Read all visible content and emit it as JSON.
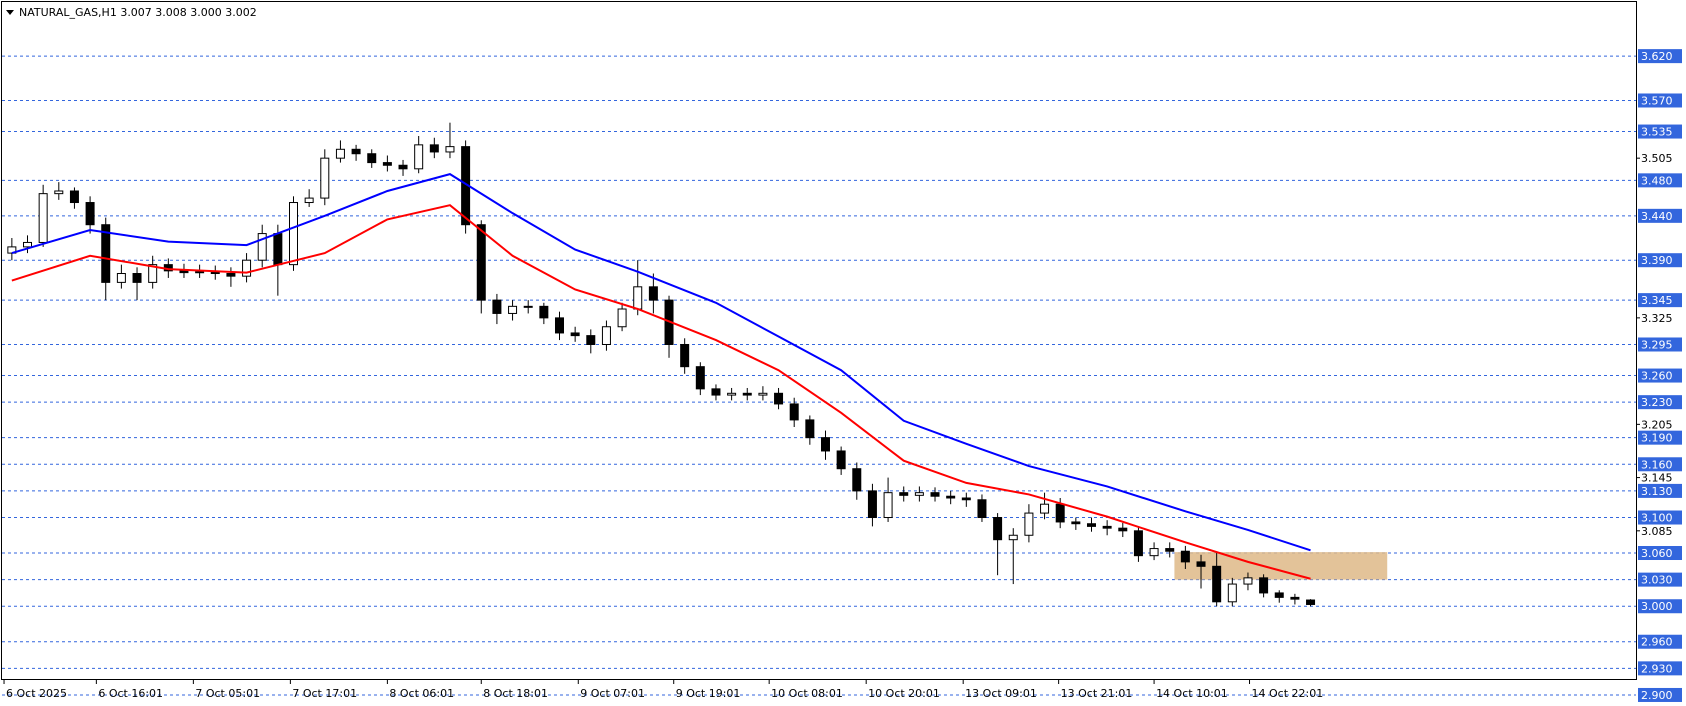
{
  "chart_data": {
    "type": "candlestick",
    "title": "NATURAL_GAS,H1  3.007 3.008 3.000 3.002",
    "open": [
      3.398,
      3.405,
      3.41,
      3.465,
      3.468,
      3.455,
      3.43,
      3.365,
      3.375,
      3.365,
      3.385,
      3.378,
      3.376,
      3.377,
      3.375,
      3.372,
      3.39,
      3.42,
      3.385,
      3.455,
      3.46,
      3.505,
      3.515,
      3.51,
      3.5,
      3.497,
      3.493,
      3.52,
      3.512,
      3.518,
      3.43,
      3.345,
      3.33,
      3.338,
      3.338,
      3.325,
      3.308,
      3.305,
      3.295,
      3.315,
      3.335,
      3.36,
      3.345,
      3.295,
      3.27,
      3.245,
      3.238,
      3.24,
      3.238,
      3.24,
      3.228,
      3.21,
      3.19,
      3.175,
      3.155,
      3.13,
      3.1,
      3.128,
      3.125,
      3.128,
      3.124,
      3.122,
      3.12,
      3.1,
      3.075,
      3.08,
      3.105,
      3.115,
      3.095,
      3.093,
      3.09,
      3.088,
      3.085,
      3.057,
      3.065,
      3.062,
      3.05,
      3.045,
      3.005,
      3.025,
      3.032,
      3.015,
      3.01,
      3.007
    ],
    "high": [
      3.415,
      3.418,
      3.475,
      3.478,
      3.472,
      3.462,
      3.438,
      3.385,
      3.382,
      3.395,
      3.392,
      3.386,
      3.385,
      3.384,
      3.382,
      3.398,
      3.43,
      3.43,
      3.462,
      3.47,
      3.515,
      3.525,
      3.52,
      3.515,
      3.508,
      3.503,
      3.53,
      3.528,
      3.545,
      3.525,
      3.435,
      3.352,
      3.345,
      3.345,
      3.342,
      3.332,
      3.315,
      3.312,
      3.322,
      3.342,
      3.39,
      3.375,
      3.35,
      3.302,
      3.275,
      3.25,
      3.246,
      3.246,
      3.248,
      3.246,
      3.235,
      3.215,
      3.198,
      3.18,
      3.162,
      3.138,
      3.145,
      3.135,
      3.135,
      3.134,
      3.13,
      3.128,
      3.126,
      3.105,
      3.088,
      3.115,
      3.128,
      3.122,
      3.1,
      3.1,
      3.097,
      3.094,
      3.09,
      3.072,
      3.072,
      3.068,
      3.058,
      3.06,
      3.032,
      3.038,
      3.036,
      3.018,
      3.014,
      3.008
    ],
    "low": [
      3.39,
      3.398,
      3.405,
      3.458,
      3.448,
      3.42,
      3.345,
      3.358,
      3.345,
      3.358,
      3.37,
      3.37,
      3.37,
      3.368,
      3.36,
      3.365,
      3.382,
      3.35,
      3.378,
      3.45,
      3.452,
      3.5,
      3.502,
      3.494,
      3.49,
      3.485,
      3.488,
      3.505,
      3.505,
      3.42,
      3.33,
      3.318,
      3.322,
      3.33,
      3.318,
      3.3,
      3.298,
      3.285,
      3.288,
      3.31,
      3.328,
      3.33,
      3.28,
      3.262,
      3.238,
      3.232,
      3.232,
      3.232,
      3.232,
      3.222,
      3.202,
      3.182,
      3.165,
      3.148,
      3.12,
      3.09,
      3.095,
      3.118,
      3.118,
      3.118,
      3.115,
      3.112,
      3.095,
      3.035,
      3.025,
      3.072,
      3.098,
      3.088,
      3.086,
      3.084,
      3.08,
      3.078,
      3.05,
      3.052,
      3.055,
      3.042,
      3.02,
      3.0,
      3.0,
      3.018,
      3.01,
      3.004,
      3.002,
      3.0
    ],
    "close": [
      3.405,
      3.41,
      3.465,
      3.468,
      3.455,
      3.43,
      3.365,
      3.375,
      3.365,
      3.385,
      3.378,
      3.376,
      3.377,
      3.375,
      3.372,
      3.39,
      3.42,
      3.385,
      3.455,
      3.46,
      3.505,
      3.515,
      3.51,
      3.5,
      3.497,
      3.493,
      3.52,
      3.512,
      3.518,
      3.43,
      3.345,
      3.33,
      3.338,
      3.338,
      3.325,
      3.308,
      3.305,
      3.295,
      3.315,
      3.335,
      3.36,
      3.345,
      3.295,
      3.27,
      3.245,
      3.238,
      3.24,
      3.238,
      3.24,
      3.228,
      3.21,
      3.19,
      3.175,
      3.155,
      3.13,
      3.1,
      3.128,
      3.125,
      3.128,
      3.124,
      3.122,
      3.12,
      3.1,
      3.075,
      3.08,
      3.105,
      3.115,
      3.095,
      3.093,
      3.09,
      3.088,
      3.085,
      3.057,
      3.065,
      3.062,
      3.05,
      3.045,
      3.005,
      3.025,
      3.032,
      3.015,
      3.01,
      3.008,
      3.002
    ],
    "ma": [
      {
        "color": "#0000ff",
        "x": [
          0,
          5,
          10,
          15,
          20,
          24,
          28,
          32,
          36,
          40,
          45,
          49,
          53,
          57,
          61,
          65,
          70,
          75,
          79,
          83
        ],
        "values": [
          3.398,
          3.424,
          3.411,
          3.407,
          3.44,
          3.468,
          3.487,
          3.443,
          3.402,
          3.377,
          3.342,
          3.304,
          3.266,
          3.209,
          3.183,
          3.158,
          3.135,
          3.107,
          3.086,
          3.063
        ]
      },
      {
        "color": "#ff0000",
        "x": [
          0,
          5,
          10,
          15,
          20,
          24,
          28,
          32,
          36,
          40,
          45,
          49,
          53,
          57,
          61,
          65,
          70,
          75,
          79,
          83
        ],
        "values": [
          3.367,
          3.395,
          3.38,
          3.376,
          3.398,
          3.436,
          3.452,
          3.395,
          3.357,
          3.335,
          3.3,
          3.266,
          3.218,
          3.164,
          3.139,
          3.126,
          3.101,
          3.072,
          3.05,
          3.031
        ]
      }
    ],
    "zone": {
      "x": [
        74.3,
        87.9
      ],
      "y": [
        3.03,
        3.061
      ],
      "color": "#deb887"
    },
    "xlim": [
      -0.63,
      103.8
    ],
    "ylim": [
      2.918,
      3.681
    ],
    "yticks": [
      {
        "value": 3.505,
        "label": "3.505"
      },
      {
        "value": 3.325,
        "label": "3.325"
      },
      {
        "value": 3.205,
        "label": "3.205"
      },
      {
        "value": 3.145,
        "label": "3.145"
      },
      {
        "value": 3.085,
        "label": "3.085"
      }
    ],
    "levels": [
      {
        "value": 3.62,
        "label": "3.620"
      },
      {
        "value": 3.57,
        "label": "3.570"
      },
      {
        "value": 3.535,
        "label": "3.535"
      },
      {
        "value": 3.48,
        "label": "3.480"
      },
      {
        "value": 3.44,
        "label": "3.440"
      },
      {
        "value": 3.39,
        "label": "3.390"
      },
      {
        "value": 3.345,
        "label": "3.345"
      },
      {
        "value": 3.295,
        "label": "3.295"
      },
      {
        "value": 3.26,
        "label": "3.260"
      },
      {
        "value": 3.23,
        "label": "3.230"
      },
      {
        "value": 3.19,
        "label": "3.190"
      },
      {
        "value": 3.16,
        "label": "3.160"
      },
      {
        "value": 3.13,
        "label": "3.130"
      },
      {
        "value": 3.1,
        "label": "3.100"
      },
      {
        "value": 3.06,
        "label": "3.060"
      },
      {
        "value": 3.03,
        "label": "3.030"
      },
      {
        "value": 3,
        "label": "3.000"
      },
      {
        "value": 2.96,
        "label": "2.960"
      },
      {
        "value": 2.93,
        "label": "2.930"
      },
      {
        "value": 2.9,
        "label": "2.900"
      }
    ],
    "level_color": "#3366dd",
    "xticks": [
      {
        "value": -0.5,
        "label": "6 Oct 2025"
      },
      {
        "value": 5.4,
        "label": "6 Oct 16:01"
      },
      {
        "value": 11.6,
        "label": "7 Oct 05:01"
      },
      {
        "value": 17.8,
        "label": "7 Oct 17:01"
      },
      {
        "value": 24.0,
        "label": "8 Oct 06:01"
      },
      {
        "value": 30.0,
        "label": "8 Oct 18:01"
      },
      {
        "value": 36.2,
        "label": "9 Oct 07:01"
      },
      {
        "value": 42.3,
        "label": "9 Oct 19:01"
      },
      {
        "value": 48.4,
        "label": "10 Oct 08:01"
      },
      {
        "value": 54.6,
        "label": "10 Oct 20:01"
      },
      {
        "value": 60.8,
        "label": "13 Oct 09:01"
      },
      {
        "value": 66.9,
        "label": "13 Oct 21:01"
      },
      {
        "value": 73.0,
        "label": "14 Oct 10:01"
      },
      {
        "value": 79.1,
        "label": "14 Oct 22:01"
      }
    ]
  }
}
